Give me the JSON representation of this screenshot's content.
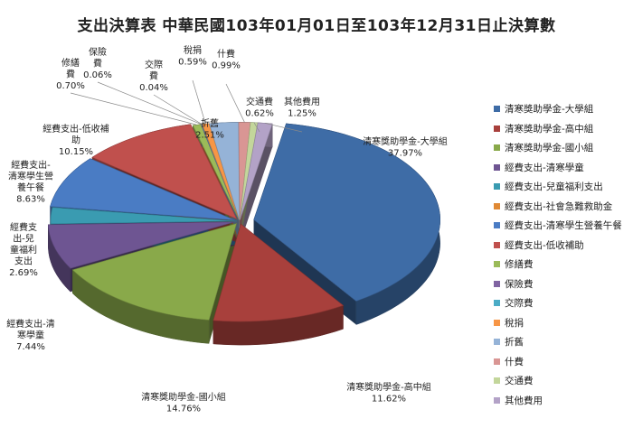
{
  "chart_data": {
    "type": "pie",
    "title": "支出決算表 中華民國103年01月01日至103年12月31日止決算數",
    "legend_position": "right",
    "slices": [
      {
        "label": "清寒獎助學金-大學組",
        "display": [
          "清寒獎助學金-大學組"
        ],
        "value_text": "37.97%",
        "value": 37.97,
        "color": "#3E6CA6"
      },
      {
        "label": "清寒獎助學金-高中組",
        "display": [
          "清寒獎助學金-高中組"
        ],
        "value_text": "11.62%",
        "value": 11.62,
        "color": "#A8403C"
      },
      {
        "label": "清寒獎助學金-國小組",
        "display": [
          "清寒獎助學金-國小組"
        ],
        "value_text": "14.76%",
        "value": 14.76,
        "color": "#89A94A"
      },
      {
        "label": "經費支出-清寒學童",
        "display": [
          "經費支出-清",
          "寒學童"
        ],
        "value_text": "7.44%",
        "value": 7.44,
        "color": "#6E5592"
      },
      {
        "label": "經費支出-兒童福利支出",
        "display": [
          "經費支",
          "出-兒",
          "童福利",
          "支出"
        ],
        "value_text": "2.69%",
        "value": 2.69,
        "color": "#3A9BB1"
      },
      {
        "label": "經費支出-社會急難救助金",
        "display": [],
        "value_text": "",
        "value": 0.0,
        "color": "#E08934"
      },
      {
        "label": "經費支出-清寒學生營養午餐",
        "display": [
          "經費支出-",
          "清寒學生營",
          "養午餐"
        ],
        "value_text": "8.63%",
        "value": 8.63,
        "color": "#4A7CC4"
      },
      {
        "label": "經費支出-低收補助",
        "display": [
          "經費支出-低收補",
          "助"
        ],
        "value_text": "10.15%",
        "value": 10.15,
        "color": "#C0504D"
      },
      {
        "label": "修繕費",
        "display": [
          "修繕",
          "費"
        ],
        "value_text": "0.70%",
        "value": 0.7,
        "color": "#9BBB59"
      },
      {
        "label": "保險費",
        "display": [
          "保險",
          "費"
        ],
        "value_text": "0.06%",
        "value": 0.06,
        "color": "#8064A2"
      },
      {
        "label": "交際費",
        "display": [
          "交際",
          "費"
        ],
        "value_text": "0.04%",
        "value": 0.04,
        "color": "#4BACC6"
      },
      {
        "label": "稅捐",
        "display": [
          "稅捐"
        ],
        "value_text": "0.59%",
        "value": 0.59,
        "color": "#F79646"
      },
      {
        "label": "折舊",
        "display": [
          "折舊"
        ],
        "value_text": "2.51%",
        "value": 2.51,
        "color": "#95B3D7"
      },
      {
        "label": "什費",
        "display": [
          "什費"
        ],
        "value_text": "0.99%",
        "value": 0.99,
        "color": "#D99694"
      },
      {
        "label": "交通費",
        "display": [
          "交通費"
        ],
        "value_text": "0.62%",
        "value": 0.62,
        "color": "#C3D69B"
      },
      {
        "label": "其他費用",
        "display": [
          "其他費用"
        ],
        "value_text": "1.25%",
        "value": 1.25,
        "color": "#B3A2C7"
      }
    ]
  }
}
